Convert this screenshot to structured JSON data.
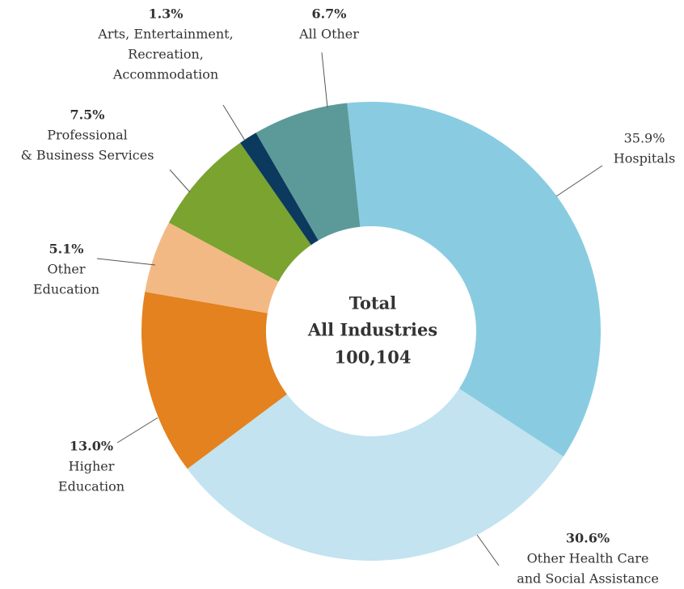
{
  "chart_data": {
    "type": "donut",
    "categories": [
      [
        "Hospitals"
      ],
      [
        "Other Health Care",
        "and Social Assistance"
      ],
      [
        "Higher",
        "Education"
      ],
      [
        "Other",
        "Education"
      ],
      [
        "Professional",
        "& Business Services"
      ],
      [
        "Arts, Entertainment,",
        "Recreation,",
        "Accommodation"
      ],
      [
        "All Other"
      ]
    ],
    "values": [
      35.9,
      30.6,
      13.0,
      5.1,
      7.5,
      1.3,
      6.7
    ],
    "value_labels": [
      "35.9%",
      "30.6%",
      "13.0%",
      "5.1%",
      "7.5%",
      "1.3%",
      "6.7%"
    ],
    "colors": [
      "#89cce1",
      "#c2e3ef",
      "#e3821e",
      "#f3b985",
      "#7aa330",
      "#0b3a5e",
      "#5b9a99"
    ],
    "center_label": [
      "Total",
      "All Industries"
    ],
    "total": {
      "value": 100104,
      "label": "100,104"
    }
  }
}
